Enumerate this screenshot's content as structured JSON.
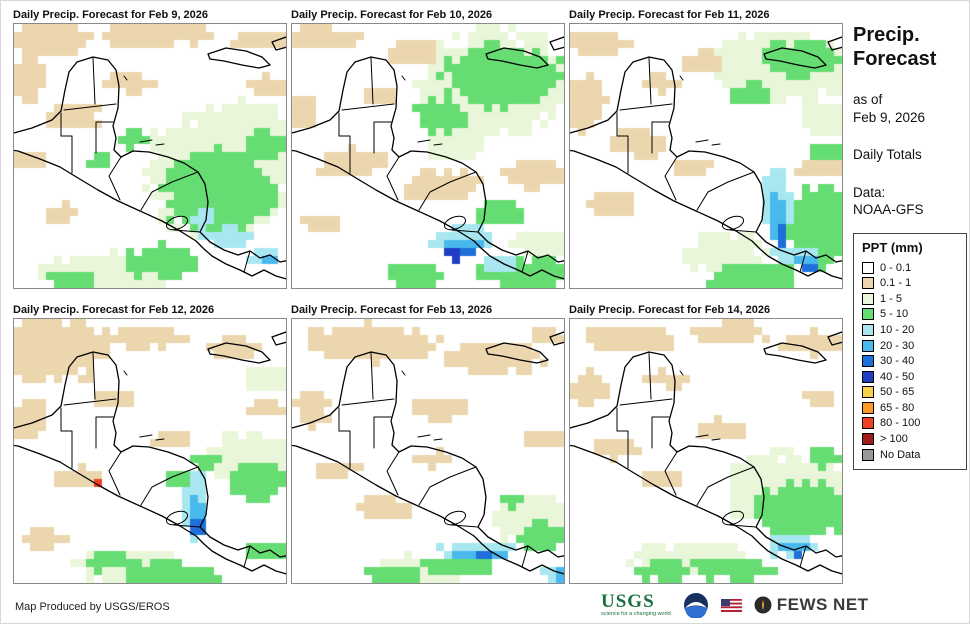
{
  "panels": [
    {
      "title": "Daily Precip. Forecast for Feb 9, 2026",
      "blobs": [
        [
          35,
          16,
          46,
          14,
          1
        ],
        [
          140,
          10,
          55,
          12,
          1
        ],
        [
          246,
          16,
          30,
          10,
          1
        ],
        [
          12,
          55,
          20,
          26,
          1
        ],
        [
          60,
          92,
          28,
          13,
          1
        ],
        [
          255,
          62,
          22,
          11,
          1
        ],
        [
          18,
          135,
          20,
          11,
          1
        ],
        [
          115,
          58,
          24,
          10,
          1
        ],
        [
          45,
          190,
          18,
          10,
          1
        ],
        [
          205,
          150,
          75,
          62,
          2
        ],
        [
          95,
          250,
          62,
          20,
          2
        ],
        [
          232,
          100,
          40,
          24,
          2
        ],
        [
          207,
          168,
          55,
          45,
          3
        ],
        [
          150,
          238,
          40,
          16,
          3
        ],
        [
          252,
          122,
          24,
          14,
          3
        ],
        [
          120,
          115,
          16,
          9,
          3
        ],
        [
          88,
          136,
          13,
          7,
          3
        ],
        [
          60,
          255,
          25,
          10,
          3
        ],
        [
          215,
          213,
          25,
          12,
          4
        ],
        [
          250,
          233,
          18,
          8,
          4
        ],
        [
          190,
          196,
          14,
          8,
          4
        ],
        [
          256,
          237,
          11,
          5,
          5
        ],
        [
          263,
          240,
          7,
          4,
          6
        ]
      ]
    },
    {
      "title": "Daily Precip. Forecast for Feb 10, 2026",
      "blobs": [
        [
          30,
          14,
          40,
          12,
          1
        ],
        [
          120,
          28,
          28,
          11,
          1
        ],
        [
          10,
          88,
          16,
          18,
          1
        ],
        [
          62,
          140,
          34,
          14,
          1
        ],
        [
          152,
          162,
          40,
          16,
          1
        ],
        [
          242,
          150,
          30,
          13,
          1
        ],
        [
          90,
          72,
          18,
          9,
          1
        ],
        [
          30,
          200,
          20,
          10,
          1
        ],
        [
          205,
          60,
          78,
          52,
          2
        ],
        [
          252,
          218,
          28,
          14,
          2
        ],
        [
          160,
          120,
          30,
          16,
          2
        ],
        [
          212,
          52,
          58,
          32,
          3
        ],
        [
          150,
          92,
          28,
          18,
          3
        ],
        [
          207,
          190,
          24,
          12,
          3
        ],
        [
          232,
          250,
          45,
          16,
          3
        ],
        [
          120,
          250,
          30,
          12,
          3
        ],
        [
          172,
          214,
          30,
          14,
          4
        ],
        [
          205,
          240,
          20,
          8,
          4
        ],
        [
          168,
          222,
          22,
          10,
          5
        ],
        [
          165,
          228,
          15,
          7,
          6
        ],
        [
          161,
          232,
          9,
          5,
          7
        ]
      ]
    },
    {
      "title": "Daily Precip. Forecast for Feb 11, 2026",
      "blobs": [
        [
          25,
          18,
          34,
          12,
          1
        ],
        [
          15,
          80,
          20,
          28,
          1
        ],
        [
          70,
          120,
          30,
          14,
          1
        ],
        [
          40,
          180,
          28,
          13,
          1
        ],
        [
          140,
          38,
          28,
          11,
          1
        ],
        [
          120,
          142,
          24,
          10,
          1
        ],
        [
          250,
          145,
          22,
          10,
          1
        ],
        [
          90,
          60,
          18,
          8,
          1
        ],
        [
          212,
          42,
          68,
          36,
          2
        ],
        [
          152,
          230,
          42,
          20,
          2
        ],
        [
          255,
          95,
          25,
          18,
          2
        ],
        [
          232,
          35,
          42,
          18,
          3
        ],
        [
          180,
          70,
          24,
          11,
          3
        ],
        [
          250,
          200,
          30,
          40,
          3
        ],
        [
          182,
          252,
          48,
          14,
          3
        ],
        [
          255,
          130,
          18,
          10,
          3
        ],
        [
          206,
          178,
          16,
          34,
          4
        ],
        [
          228,
          231,
          24,
          10,
          4
        ],
        [
          209,
          192,
          9,
          22,
          5
        ],
        [
          232,
          238,
          14,
          6,
          5
        ],
        [
          212,
          212,
          7,
          11,
          6
        ],
        [
          240,
          242,
          9,
          5,
          6
        ]
      ]
    },
    {
      "title": "Daily Precip. Forecast for Feb 12, 2026",
      "blobs": [
        [
          42,
          30,
          52,
          32,
          1
        ],
        [
          15,
          100,
          18,
          22,
          1
        ],
        [
          130,
          18,
          38,
          11,
          1
        ],
        [
          102,
          80,
          24,
          11,
          1
        ],
        [
          222,
          28,
          28,
          10,
          1
        ],
        [
          62,
          160,
          28,
          11,
          1
        ],
        [
          252,
          90,
          18,
          9,
          1
        ],
        [
          30,
          220,
          22,
          10,
          1
        ],
        [
          160,
          120,
          20,
          9,
          1
        ],
        [
          232,
          142,
          45,
          28,
          2
        ],
        [
          252,
          60,
          24,
          14,
          2
        ],
        [
          110,
          245,
          55,
          16,
          2
        ],
        [
          242,
          162,
          30,
          20,
          3
        ],
        [
          155,
          255,
          48,
          12,
          3
        ],
        [
          252,
          232,
          24,
          11,
          3
        ],
        [
          98,
          242,
          26,
          10,
          3
        ],
        [
          192,
          142,
          18,
          9,
          3
        ],
        [
          172,
          162,
          18,
          13,
          3
        ],
        [
          181,
          186,
          13,
          38,
          4
        ],
        [
          183,
          196,
          8,
          24,
          5
        ],
        [
          184,
          206,
          5,
          12,
          6
        ],
        [
          83,
          165,
          3,
          2,
          10
        ]
      ]
    },
    {
      "title": "Daily Precip. Forecast for Feb 13, 2026",
      "blobs": [
        [
          80,
          24,
          65,
          18,
          1
        ],
        [
          200,
          40,
          48,
          16,
          1
        ],
        [
          258,
          18,
          20,
          9,
          1
        ],
        [
          20,
          90,
          18,
          18,
          1
        ],
        [
          150,
          90,
          28,
          11,
          1
        ],
        [
          250,
          120,
          22,
          9,
          1
        ],
        [
          42,
          150,
          24,
          9,
          1
        ],
        [
          92,
          190,
          28,
          11,
          1
        ],
        [
          140,
          140,
          20,
          8,
          1
        ],
        [
          240,
          200,
          40,
          24,
          2
        ],
        [
          135,
          250,
          58,
          14,
          2
        ],
        [
          252,
          216,
          26,
          14,
          3
        ],
        [
          172,
          246,
          38,
          11,
          3
        ],
        [
          102,
          255,
          28,
          9,
          3
        ],
        [
          222,
          180,
          14,
          8,
          3
        ],
        [
          182,
          232,
          38,
          9,
          4
        ],
        [
          262,
          254,
          14,
          8,
          4
        ],
        [
          186,
          236,
          24,
          6,
          5
        ],
        [
          266,
          257,
          8,
          5,
          5
        ],
        [
          190,
          238,
          13,
          4,
          6
        ]
      ]
    },
    {
      "title": "Daily Precip. Forecast for Feb 14, 2026",
      "blobs": [
        [
          62,
          20,
          48,
          14,
          1
        ],
        [
          160,
          14,
          38,
          11,
          1
        ],
        [
          240,
          24,
          28,
          11,
          1
        ],
        [
          20,
          70,
          18,
          18,
          1
        ],
        [
          102,
          60,
          24,
          9,
          1
        ],
        [
          150,
          110,
          28,
          11,
          1
        ],
        [
          42,
          130,
          24,
          10,
          1
        ],
        [
          252,
          78,
          18,
          9,
          1
        ],
        [
          90,
          160,
          20,
          9,
          1
        ],
        [
          222,
          172,
          62,
          38,
          2
        ],
        [
          122,
          240,
          58,
          16,
          2
        ],
        [
          232,
          192,
          45,
          28,
          3
        ],
        [
          162,
          250,
          42,
          12,
          3
        ],
        [
          92,
          252,
          28,
          9,
          3
        ],
        [
          252,
          140,
          18,
          9,
          3
        ],
        [
          220,
          227,
          25,
          10,
          4
        ],
        [
          225,
          231,
          16,
          6,
          5
        ],
        [
          230,
          233,
          10,
          4,
          6
        ],
        [
          255,
          140,
          3,
          2,
          10
        ]
      ]
    }
  ],
  "sidebar": {
    "title_line1": "Precip.",
    "title_line2": "Forecast",
    "asof_line1": "as of",
    "asof_line2": "Feb 9, 2026",
    "daily_totals": "Daily Totals",
    "data_line1": "Data:",
    "data_line2": "NOAA-GFS"
  },
  "legend": {
    "title": "PPT (mm)",
    "items": [
      {
        "label": "0 - 0.1",
        "color": "#ffffff"
      },
      {
        "label": "0.1 - 1",
        "color": "#ebd6ae"
      },
      {
        "label": "1 - 5",
        "color": "#e9f6da"
      },
      {
        "label": "5 - 10",
        "color": "#66dd72"
      },
      {
        "label": "10 - 20",
        "color": "#a8e7f0"
      },
      {
        "label": "20 - 30",
        "color": "#49b9ed"
      },
      {
        "label": "30 - 40",
        "color": "#1e6fd9"
      },
      {
        "label": "40 - 50",
        "color": "#1f3ec4"
      },
      {
        "label": "50 - 65",
        "color": "#fdd04a"
      },
      {
        "label": "65 - 80",
        "color": "#fd9827"
      },
      {
        "label": "80 - 100",
        "color": "#f03f23"
      },
      {
        "label": "> 100",
        "color": "#9e1b17"
      },
      {
        "label": "No Data",
        "color": "#999999"
      }
    ]
  },
  "footer": {
    "credit": "Map Produced by USGS/EROS",
    "usgs_text": "USGS",
    "usgs_tagline": "science for a changing world",
    "fewsnet_text": "FEWS NET"
  }
}
